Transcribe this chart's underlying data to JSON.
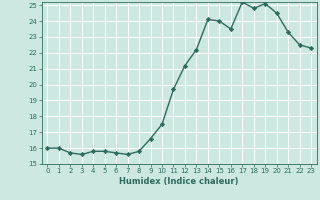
{
  "x": [
    0,
    1,
    2,
    3,
    4,
    5,
    6,
    7,
    8,
    9,
    10,
    11,
    12,
    13,
    14,
    15,
    16,
    17,
    18,
    19,
    20,
    21,
    22,
    23
  ],
  "y": [
    16.0,
    16.0,
    15.7,
    15.6,
    15.8,
    15.8,
    15.7,
    15.6,
    15.8,
    16.6,
    17.5,
    19.7,
    21.2,
    22.2,
    24.1,
    24.0,
    23.5,
    25.2,
    24.8,
    25.1,
    24.5,
    23.3,
    22.5,
    22.3
  ],
  "ylim_min": 15,
  "ylim_max": 25,
  "yticks": [
    15,
    16,
    17,
    18,
    19,
    20,
    21,
    22,
    23,
    24,
    25
  ],
  "xticks": [
    0,
    1,
    2,
    3,
    4,
    5,
    6,
    7,
    8,
    9,
    10,
    11,
    12,
    13,
    14,
    15,
    16,
    17,
    18,
    19,
    20,
    21,
    22,
    23
  ],
  "xlabel": "Humidex (Indice chaleur)",
  "line_color": "#2e6b5e",
  "marker": "D",
  "marker_size": 2.2,
  "bg_color": "#cce8e0",
  "grid_color": "#ffffff",
  "line_width": 1.0,
  "font_color": "#2e6b5e",
  "tick_fontsize": 5.0,
  "xlabel_fontsize": 6.0
}
